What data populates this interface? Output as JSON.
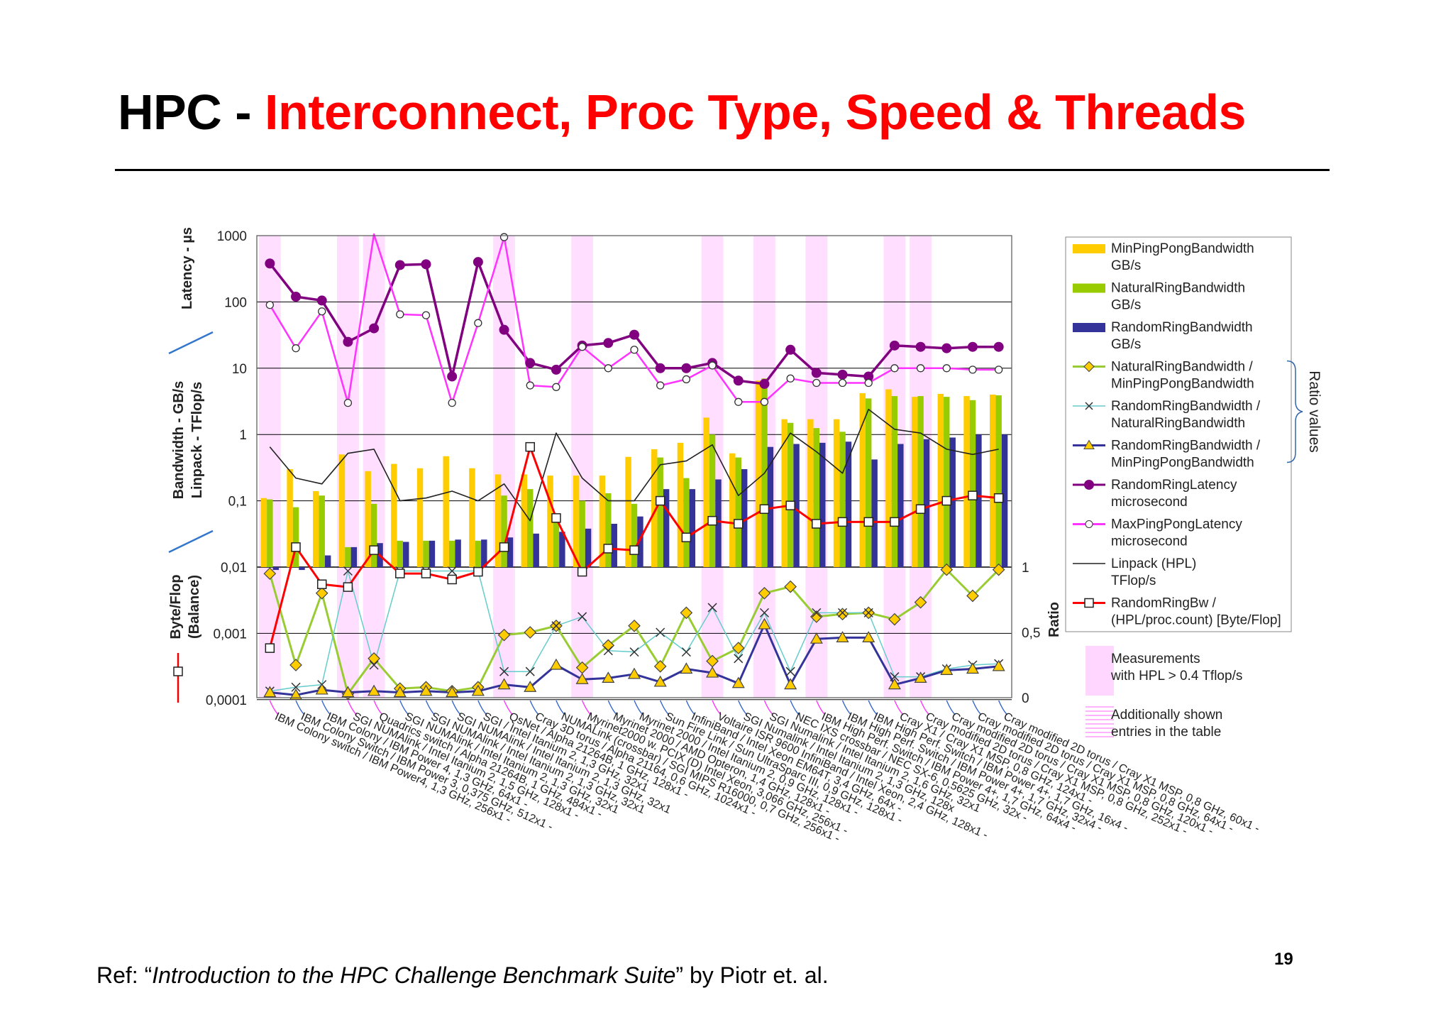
{
  "slide": {
    "title_prefix": "HPC - ",
    "title_highlight": "Interconnect, Proc Type, Speed & Threads",
    "ref_prefix": "Ref: “",
    "ref_title": "Introduction to the HPC Challenge Benchmark Suite",
    "ref_suffix": "” by Piotr et. al.",
    "page_number": "19"
  },
  "colors": {
    "title_black": "#000000",
    "title_red": "#ff0000",
    "min_pingpong_bw": "#ffcc00",
    "natural_ring_bw": "#99cc00",
    "random_ring_bw": "#333399",
    "random_ring_latency": "#800080",
    "max_pingpong_latency": "#ff33ff",
    "linpack": "#222222",
    "random_ring_bw_per_flop": "#ff0000",
    "ratio_nat_min": "#99cc33",
    "ratio_rand_nat": "#66cccc",
    "ratio_rand_min": "#333399",
    "highlight_band": "#ffccff"
  },
  "chart_data": {
    "type": "bar",
    "y_left_upper": {
      "scale": "log",
      "ticks": [
        "1000",
        "100",
        "10",
        "1",
        "0,1",
        "0,01"
      ],
      "label_latency": "Latency - µs",
      "label_bw_1": "Bandwidth  - GB/s",
      "label_bw_2": "Linpack  -  TFlop/s"
    },
    "y_left_lower": {
      "scale": "log",
      "ticks": [
        "0,001",
        "0,0001"
      ],
      "label_1": "Byte/Flop",
      "label_2": "(Balance)"
    },
    "y_right": {
      "ticks": [
        "1",
        "0,5",
        "0"
      ],
      "label": "Ratio",
      "ylim": [
        0,
        1
      ]
    },
    "categories": [
      "IBM Colony switch / IBM Power4, 1,3 GHz, 256x1 -",
      "IBM Colony Switch / IBM Power 3, 0,375 GHz, 512x1 -",
      "IBM Colony / IBM Power 4, 1,3 GHz, 64x1 -",
      "SGI NUMAlink / Intel Itanium 2, 1,5 GHz, 128x1 -",
      "Quadrics switch / Alpha 21264B, 1 GHz, 484x1 -",
      "SGI NUMAlink / Intel Itanium 2, 1,3 GHz, 32x1",
      "SGI NUMAlink / Intel Itanium 2, 1,3 GHz, 32x1",
      "SGI NUMAlink / Intel Itanium 2, 1,3 GHz, 32x1",
      "SGI / Intel Itanium 2, 1,3 GHz, 32x1",
      "QsNet / Alpha 21264B, 1 GHz, 128x1 -",
      "Cray 3D torus / Alpha 21164, 0,6 GHz, 1024x1 -",
      "NUMALink (crossbar) / SGI MIPS R16000, 0,7 GHz, 256x1 -",
      "Myrinet2000 w. PCIX (D) Intel Xeon, 3,066 GHz, 256x1 -",
      "Myrinet 2000 / AMD Opteron, 1,4 GHz, 128x1 -",
      "Myrinet 2000 / Intel Itanium 2, 0,9 GHz, 128x1 -",
      "Sun Fire Link / Sun UltraSparc III, 0,9 GHz, 128x1 -",
      "InfiniBand / Intel Xeon EM64T, 3,4 GHz, 64x -",
      "Voltaire ISR 9600 InfiniBand / Intel Xeon, 2,4 GHz, 128x1 -",
      "SGI Numalink / Intel Itanium 2, 1,3 GHz, 128x",
      "SGI Numalink / Intel Itanium 2, 1,6 GHz, 32x1",
      "NEC IXS crossbar / NEC SX-6, 0,5625 GHz, 32x -",
      "IBM High Perf. Switch / IBM Power 4+, 1,7 GHz, 64x4 -",
      "IBM High Perf. Switch / IBM Power 4+, 1,7 GHz, 32x4 -",
      "IBM High Perf. Switch / IBM Power 4+, 1,7 GHz, 16x4 -",
      "Cray X1 / Cray X1 MSP, 0,8 GHz, 124x1 -",
      "Cray modified 2D torus / Cray X1 MSP, 0,8 GHz, 252x1 -",
      "Cray modified 2D torus / Cray X1 MSP, 0,8 GHz, 120x1 -",
      "Cray modified 2D torus / Cray X1 MSP, 0,8 GHz, 64x1 -",
      "Cray modified 2D torus / Cray X1 MSP, 0,8 GHz, 60x1 -"
    ],
    "highlight_columns": [
      0,
      3,
      4,
      9,
      12,
      17,
      19,
      21,
      24,
      25
    ],
    "series": [
      {
        "name": "MinPingPongBandwidth GB/s",
        "kind": "bar",
        "values": [
          0.11,
          0.3,
          0.14,
          0.5,
          0.28,
          0.36,
          0.31,
          0.47,
          0.31,
          0.25,
          0.25,
          0.24,
          0.24,
          0.24,
          0.46,
          0.6,
          0.75,
          1.8,
          0.52,
          6.5,
          1.7,
          1.7,
          1.7,
          4.2,
          4.8,
          3.7,
          4.1,
          3.8,
          4.0
        ]
      },
      {
        "name": "NaturalRingBandwidth GB/s",
        "kind": "bar",
        "values": [
          0.105,
          0.08,
          0.12,
          0.02,
          0.09,
          0.025,
          0.025,
          0.025,
          0.025,
          0.12,
          0.15,
          0.055,
          0.1,
          0.13,
          0.09,
          0.45,
          0.22,
          1.0,
          0.45,
          7.0,
          1.5,
          1.25,
          1.1,
          3.5,
          3.8,
          3.8,
          3.7,
          3.3,
          3.9
        ]
      },
      {
        "name": "RandomRingBandwidth GB/s",
        "kind": "bar",
        "values": [
          0.008,
          0.008,
          0.015,
          0.02,
          0.023,
          0.024,
          0.025,
          0.026,
          0.026,
          0.028,
          0.032,
          0.034,
          0.038,
          0.045,
          0.058,
          0.15,
          0.15,
          0.21,
          0.3,
          0.65,
          0.72,
          0.75,
          0.78,
          0.42,
          0.72,
          0.85,
          0.9,
          1.0,
          1.0
        ]
      },
      {
        "name": "NaturalRingBandwidth / MinPingPongBandwidth",
        "kind": "ratio",
        "values": [
          0.95,
          0.25,
          0.8,
          0.03,
          0.3,
          0.07,
          0.08,
          0.05,
          0.08,
          0.48,
          0.5,
          0.55,
          0.23,
          0.4,
          0.55,
          0.24,
          0.65,
          0.28,
          0.38,
          0.8,
          0.85,
          0.62,
          0.64,
          0.65,
          0.6,
          0.73,
          0.98,
          0.78,
          0.98
        ]
      },
      {
        "name": "RandomRingBandwidth / NaturalRingBandwidth",
        "kind": "ratio",
        "values": [
          0.05,
          0.08,
          0.1,
          0.97,
          0.25,
          0.97,
          0.97,
          0.97,
          0.97,
          0.2,
          0.2,
          0.55,
          0.62,
          0.36,
          0.35,
          0.5,
          0.35,
          0.69,
          0.3,
          0.65,
          0.2,
          0.65,
          0.65,
          0.65,
          0.16,
          0.16,
          0.22,
          0.25,
          0.26
        ]
      },
      {
        "name": "RandomRingBandwidth / MinPingPongBandwidth",
        "kind": "ratio",
        "values": [
          0.04,
          0.02,
          0.06,
          0.04,
          0.05,
          0.04,
          0.05,
          0.04,
          0.05,
          0.1,
          0.08,
          0.25,
          0.14,
          0.15,
          0.18,
          0.12,
          0.22,
          0.19,
          0.11,
          0.56,
          0.1,
          0.45,
          0.46,
          0.46,
          0.1,
          0.15,
          0.21,
          0.22,
          0.24
        ]
      },
      {
        "name": "RandomRingLatency microsecond",
        "kind": "latency",
        "values": [
          380,
          120,
          105,
          25,
          40,
          360,
          370,
          7.5,
          400,
          38,
          12,
          9.5,
          22,
          24,
          32,
          10,
          10,
          12,
          6.5,
          5.8,
          19,
          8.5,
          8.0,
          7.5,
          22,
          21,
          20,
          21,
          21
        ]
      },
      {
        "name": "MaxPingPongLatency microsecond",
        "kind": "latency",
        "values": [
          90,
          20,
          72,
          3,
          1800,
          65,
          63,
          3,
          48,
          950,
          5.5,
          5.2,
          21,
          10,
          19,
          5.5,
          6.8,
          11,
          3.1,
          3.1,
          7.0,
          6.0,
          6.0,
          6.0,
          10,
          10,
          10,
          9.5,
          9.5
        ]
      },
      {
        "name": "Linpack (HPL) TFlop/s",
        "kind": "linpack",
        "values": [
          0.65,
          0.22,
          0.18,
          0.52,
          0.6,
          0.1,
          0.11,
          0.14,
          0.1,
          0.18,
          0.05,
          1.05,
          0.22,
          0.1,
          0.1,
          0.35,
          0.4,
          0.7,
          0.12,
          0.26,
          1.05,
          0.55,
          0.26,
          2.4,
          1.2,
          1.05,
          0.6,
          0.5,
          0.6
        ]
      },
      {
        "name": "RandomRingBw / (HPL/proc.count) [Byte/Flop]",
        "kind": "byteflop",
        "values": [
          0.0006,
          0.02,
          0.0055,
          0.005,
          0.018,
          0.008,
          0.008,
          0.0065,
          0.0085,
          0.02,
          0.65,
          0.055,
          0.0085,
          0.019,
          0.018,
          0.1,
          0.028,
          0.05,
          0.045,
          0.075,
          0.085,
          0.045,
          0.048,
          0.048,
          0.048,
          0.075,
          0.1,
          0.12,
          0.11
        ]
      }
    ],
    "legend": {
      "placement": "right",
      "items": [
        {
          "name": "MinPingPongBandwidth",
          "unit": "GB/s"
        },
        {
          "name": "NaturalRingBandwidth",
          "unit": "GB/s"
        },
        {
          "name": "RandomRingBandwidth",
          "unit": "GB/s"
        },
        {
          "name": "NaturalRingBandwidth /",
          "unit": "MinPingPongBandwidth"
        },
        {
          "name": "RandomRingBandwidth /",
          "unit": "NaturalRingBandwidth"
        },
        {
          "name": "RandomRingBandwidth /",
          "unit": "MinPingPongBandwidth"
        },
        {
          "name": "RandomRingLatency",
          "unit": "microsecond"
        },
        {
          "name": "MaxPingPongLatency",
          "unit": "microsecond"
        },
        {
          "name": "Linpack (HPL)",
          "unit": "TFlop/s"
        },
        {
          "name": "RandomRingBw /",
          "unit": "(HPL/proc.count) [Byte/Flop]"
        }
      ],
      "ratio_group_label": "Ratio values",
      "note_pink": [
        "Measurements",
        "with HPL > 0.4 Tflop/s"
      ],
      "note_hatched": [
        "Additionally shown",
        "entries in the table"
      ]
    }
  }
}
